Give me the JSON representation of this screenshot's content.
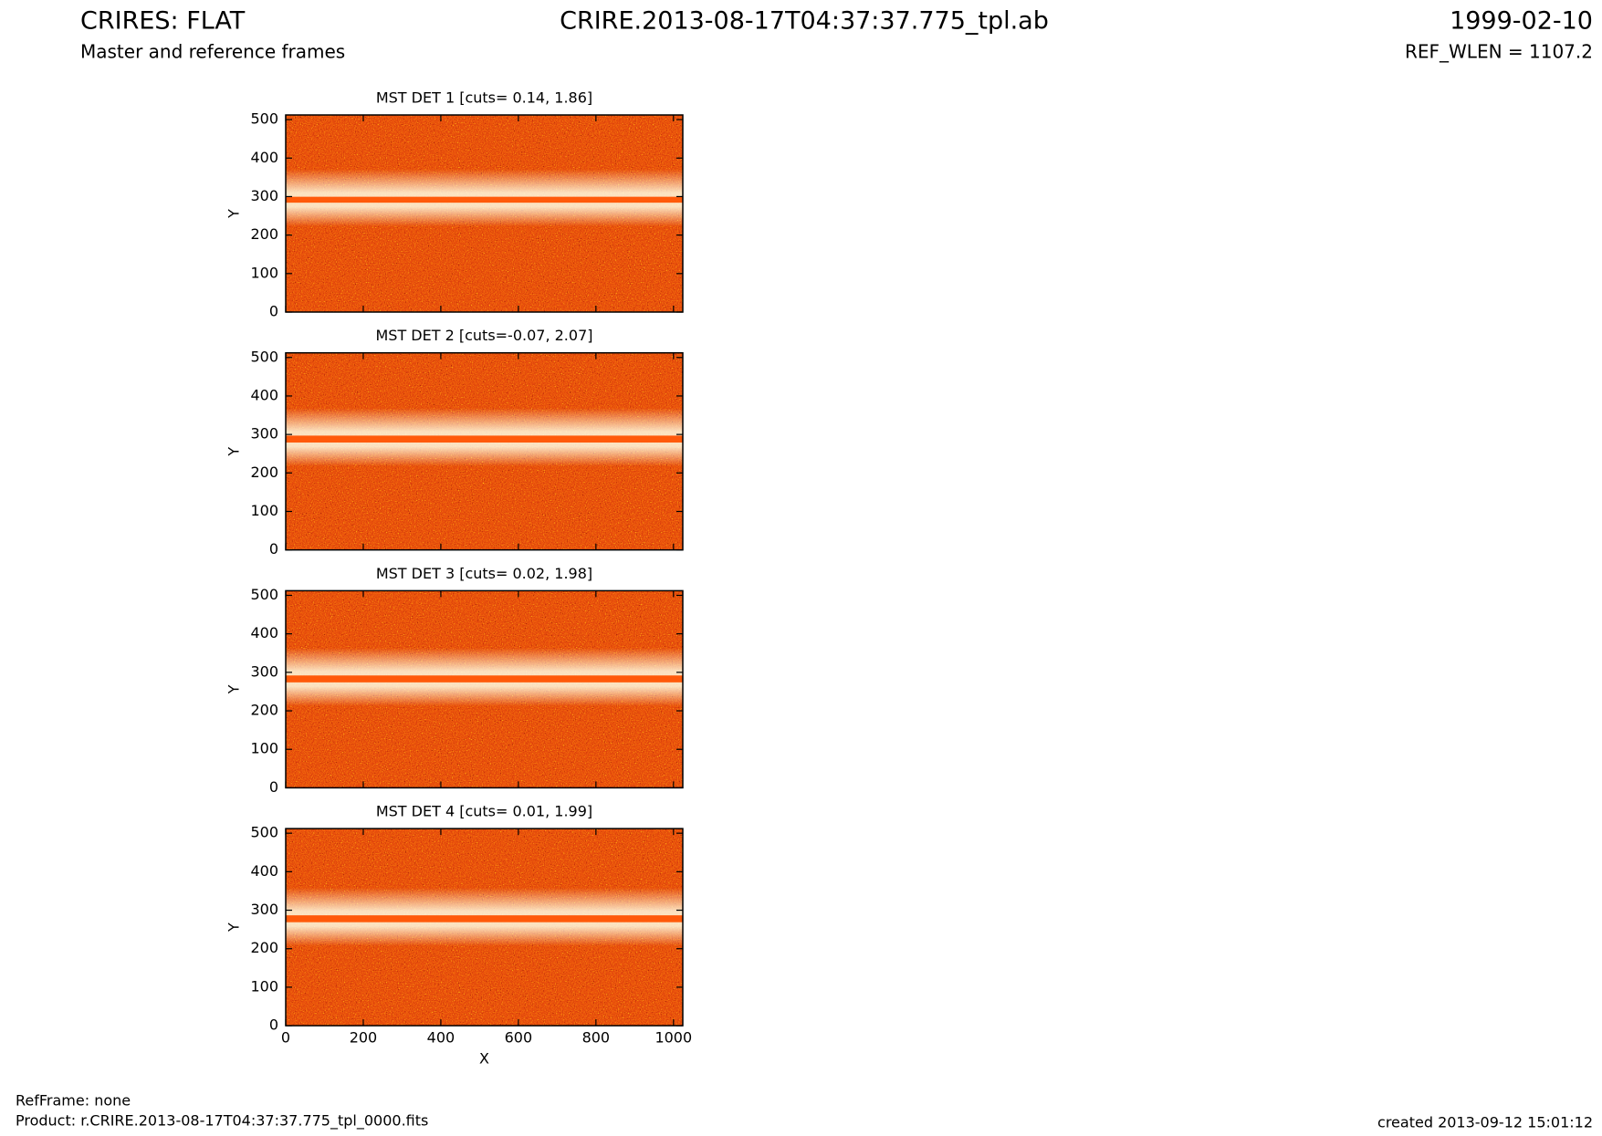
{
  "header": {
    "title": "CRIRES: FLAT",
    "subtitle": "Master and reference frames",
    "file": "CRIRE.2013-08-17T04:37:37.775_tpl.ab",
    "date": "1999-02-10",
    "ref_wlen": "REF_WLEN = 1107.2"
  },
  "footer": {
    "refframe": "RefFrame: none",
    "product": "Product: r.CRIRE.2013-08-17T04:37:37.775_tpl_0000.fits",
    "created": "created 2013-09-12 15:01:12"
  },
  "chart_data": [
    {
      "type": "image",
      "title": "MST DET 1 [cuts= 0.14, 1.86]",
      "ylabel": "Y",
      "xlim": [
        0,
        1024
      ],
      "ylim": [
        0,
        512
      ],
      "xticks": [
        0,
        200,
        400,
        600,
        800,
        1000
      ],
      "yticks": [
        0,
        100,
        200,
        300,
        400,
        500
      ]
    },
    {
      "type": "image",
      "title": "MST DET 2 [cuts=-0.07, 2.07]",
      "ylabel": "Y",
      "xlim": [
        0,
        1024
      ],
      "ylim": [
        0,
        512
      ],
      "xticks": [
        0,
        200,
        400,
        600,
        800,
        1000
      ],
      "yticks": [
        0,
        100,
        200,
        300,
        400,
        500
      ]
    },
    {
      "type": "image",
      "title": "MST DET 3 [cuts= 0.02, 1.98]",
      "ylabel": "Y",
      "xlim": [
        0,
        1024
      ],
      "ylim": [
        0,
        512
      ],
      "xticks": [
        0,
        200,
        400,
        600,
        800,
        1000
      ],
      "yticks": [
        0,
        100,
        200,
        300,
        400,
        500
      ]
    },
    {
      "type": "image",
      "title": "MST DET 4 [cuts= 0.01, 1.99]",
      "ylabel": "Y",
      "xlabel": "X",
      "xlim": [
        0,
        1024
      ],
      "ylim": [
        0,
        512
      ],
      "xticks": [
        0,
        200,
        400,
        600,
        800,
        1000
      ],
      "yticks": [
        0,
        100,
        200,
        300,
        400,
        500
      ]
    }
  ]
}
